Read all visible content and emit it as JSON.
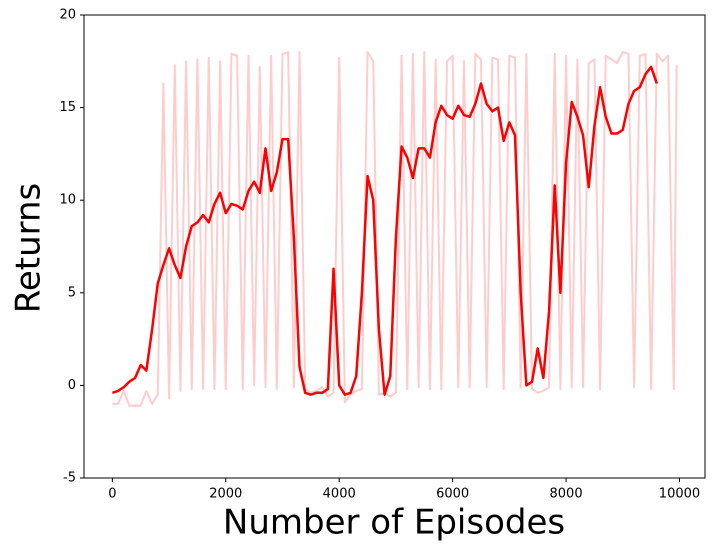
{
  "chart_data": {
    "type": "line",
    "x_label": "Number of Episodes",
    "y_label": "Returns",
    "xlim": [
      -500,
      10450
    ],
    "ylim": [
      -5,
      20
    ],
    "xticks": [
      0,
      2000,
      4000,
      6000,
      8000,
      10000
    ],
    "yticks": [
      -5,
      0,
      5,
      10,
      15,
      20
    ],
    "grid": false,
    "series": [
      {
        "color": "#ffcccc",
        "width": 2,
        "x": [
          0,
          100,
          200,
          300,
          400,
          500,
          600,
          700,
          800,
          900,
          1000,
          1100,
          1200,
          1300,
          1400,
          1500,
          1600,
          1700,
          1800,
          1900,
          2000,
          2100,
          2200,
          2300,
          2400,
          2500,
          2600,
          2700,
          2800,
          2900,
          3000,
          3100,
          3200,
          3300,
          3400,
          3500,
          3600,
          3700,
          3800,
          3900,
          4000,
          4100,
          4200,
          4300,
          4400,
          4500,
          4600,
          4700,
          4800,
          4900,
          5000,
          5100,
          5200,
          5300,
          5400,
          5500,
          5600,
          5700,
          5800,
          5900,
          6000,
          6100,
          6200,
          6300,
          6400,
          6500,
          6600,
          6700,
          6800,
          6900,
          7000,
          7100,
          7200,
          7300,
          7400,
          7500,
          7600,
          7700,
          7800,
          7900,
          8000,
          8100,
          8200,
          8300,
          8400,
          8500,
          8600,
          8700,
          8800,
          8900,
          9000,
          9100,
          9200,
          9300,
          9400,
          9500,
          9600,
          9700,
          9800,
          9900,
          9950
        ],
        "values": [
          -1,
          -1,
          -0.3,
          -1.1,
          -1.1,
          -1.1,
          -0.3,
          -1,
          -0.5,
          16.3,
          -0.7,
          17.3,
          -0.3,
          17.5,
          -0.2,
          17.6,
          -0.2,
          17.7,
          -0.2,
          17.5,
          -0.2,
          17.9,
          17.8,
          -0.2,
          17.8,
          0,
          17.2,
          -0.1,
          17.8,
          -0.2,
          17.9,
          18,
          -0.1,
          18,
          -0.2,
          -0.4,
          -0.3,
          -0.1,
          -0.6,
          -0.4,
          17.7,
          -0.9,
          -0.5,
          -0.3,
          -0.2,
          18,
          17.5,
          -0.5,
          -0.4,
          -0.6,
          -0.4,
          17.8,
          -0.2,
          17.9,
          -0.1,
          18,
          -0.2,
          17.6,
          -0.2,
          17.5,
          17.8,
          -0.1,
          17.5,
          -0.1,
          17.9,
          17.6,
          -0.1,
          17.7,
          17.6,
          -0.2,
          17.8,
          17.7,
          -0.1,
          17.9,
          -0.2,
          -0.4,
          -0.3,
          -0.1,
          17.9,
          -0.2,
          17.8,
          -0.1,
          17.6,
          -0.1,
          17.4,
          17.6,
          -0.2,
          17.8,
          17.6,
          17.4,
          18,
          17.9,
          -0.1,
          17.8,
          17.9,
          -0.2,
          17.9,
          17.5,
          17.8,
          -0.2,
          17.3
        ]
      },
      {
        "color": "#ff0000",
        "width": 2.5,
        "x": [
          0,
          100,
          200,
          300,
          400,
          500,
          600,
          700,
          800,
          900,
          1000,
          1100,
          1200,
          1300,
          1400,
          1500,
          1600,
          1700,
          1800,
          1900,
          2000,
          2100,
          2200,
          2300,
          2400,
          2500,
          2600,
          2700,
          2800,
          2900,
          3000,
          3100,
          3200,
          3300,
          3400,
          3500,
          3600,
          3700,
          3800,
          3900,
          4000,
          4100,
          4200,
          4300,
          4400,
          4500,
          4600,
          4700,
          4800,
          4900,
          5000,
          5100,
          5200,
          5300,
          5400,
          5500,
          5600,
          5700,
          5800,
          5900,
          6000,
          6100,
          6200,
          6300,
          6400,
          6500,
          6600,
          6700,
          6800,
          6900,
          7000,
          7100,
          7200,
          7300,
          7400,
          7500,
          7600,
          7700,
          7800,
          7900,
          8000,
          8100,
          8200,
          8300,
          8400,
          8500,
          8600,
          8700,
          8800,
          8900,
          9000,
          9100,
          9200,
          9300,
          9400,
          9500,
          9600
        ],
        "values": [
          -0.4,
          -0.3,
          -0.1,
          0.2,
          0.4,
          1.1,
          0.8,
          3,
          5.5,
          6.5,
          7.4,
          6.5,
          5.8,
          7.5,
          8.6,
          8.8,
          9.2,
          8.8,
          9.8,
          10.4,
          9.3,
          9.8,
          9.7,
          9.5,
          10.5,
          11,
          10.4,
          12.8,
          10.5,
          11.5,
          13.3,
          13.3,
          8,
          1,
          -0.4,
          -0.5,
          -0.4,
          -0.4,
          -0.2,
          6.3,
          0,
          -0.5,
          -0.4,
          0.5,
          5,
          11.3,
          10,
          3,
          -0.5,
          0.5,
          8,
          12.9,
          12.3,
          11.2,
          12.8,
          12.8,
          12.3,
          14.2,
          15.1,
          14.6,
          14.4,
          15.1,
          14.6,
          14.5,
          15.2,
          16.3,
          15.2,
          14.8,
          15,
          13.2,
          14.2,
          13.5,
          5,
          0,
          0.2,
          2,
          0.4,
          4,
          10.8,
          5,
          12,
          15.3,
          14.5,
          13.5,
          10.7,
          14,
          16.1,
          14.5,
          13.6,
          13.6,
          13.8,
          15.2,
          15.9,
          16.1,
          16.8,
          17.2,
          16.3
        ]
      }
    ]
  }
}
